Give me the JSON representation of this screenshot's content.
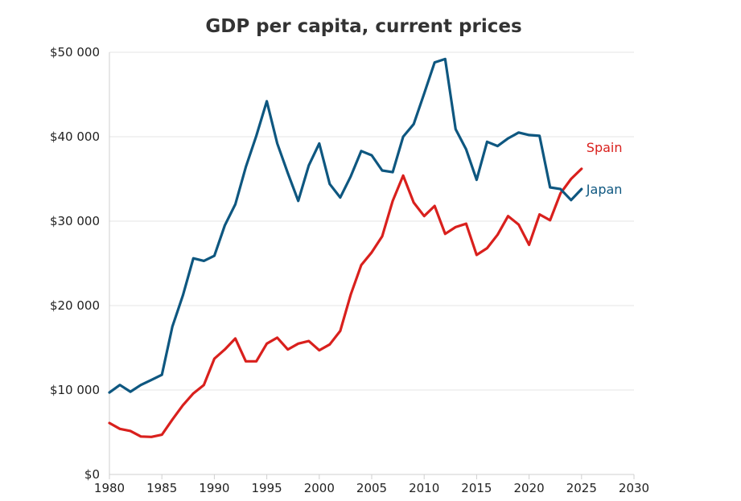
{
  "chart_data": {
    "type": "line",
    "title": "GDP per capita, current prices",
    "xlabel": "",
    "ylabel": "",
    "xlim": [
      1980,
      2030
    ],
    "ylim": [
      0,
      50000
    ],
    "x_ticks": [
      1980,
      1985,
      1990,
      1995,
      2000,
      2005,
      2010,
      2015,
      2020,
      2025,
      2030
    ],
    "x_tick_labels": [
      "1980",
      "1985",
      "1990",
      "1995",
      "2000",
      "2005",
      "2010",
      "2015",
      "2020",
      "2025",
      "2030"
    ],
    "y_ticks": [
      0,
      10000,
      20000,
      30000,
      40000,
      50000
    ],
    "y_tick_labels": [
      "$0",
      "$10 000",
      "$20 000",
      "$30 000",
      "$40 000",
      "$50 000"
    ],
    "grid": true,
    "legend": "inline labels at line ends",
    "x": [
      1980,
      1981,
      1982,
      1983,
      1984,
      1985,
      1986,
      1987,
      1988,
      1989,
      1990,
      1991,
      1992,
      1993,
      1994,
      1995,
      1996,
      1997,
      1998,
      1999,
      2000,
      2001,
      2002,
      2003,
      2004,
      2005,
      2006,
      2007,
      2008,
      2009,
      2010,
      2011,
      2012,
      2013,
      2014,
      2015,
      2016,
      2017,
      2018,
      2019,
      2020,
      2021,
      2022,
      2023,
      2024,
      2025
    ],
    "series": [
      {
        "name": "Spain",
        "color": "#d9201d",
        "values": [
          6100,
          5400,
          5150,
          4500,
          4450,
          4700,
          6500,
          8200,
          9600,
          10600,
          13700,
          14800,
          16100,
          13400,
          13400,
          15500,
          16200,
          14800,
          15500,
          15800,
          14700,
          15400,
          17000,
          21300,
          24800,
          26300,
          28200,
          32400,
          35400,
          32200,
          30600,
          31800,
          28500,
          29300,
          29700,
          26000,
          26800,
          28400,
          30600,
          29600,
          27200,
          30800,
          30100,
          33300,
          35000,
          36200
        ]
      },
      {
        "name": "Japan",
        "color": "#0e5780",
        "values": [
          9700,
          10600,
          9800,
          10600,
          11200,
          11800,
          17500,
          21200,
          25600,
          25300,
          25900,
          29500,
          32000,
          36400,
          40100,
          44200,
          39200,
          35700,
          32400,
          36600,
          39200,
          34400,
          32800,
          35300,
          38300,
          37800,
          36000,
          35800,
          40000,
          41500,
          45100,
          48800,
          49200,
          40900,
          38500,
          34900,
          39400,
          38900,
          39800,
          40500,
          40200,
          40100,
          34000,
          33800,
          32500,
          33800
        ]
      }
    ]
  }
}
